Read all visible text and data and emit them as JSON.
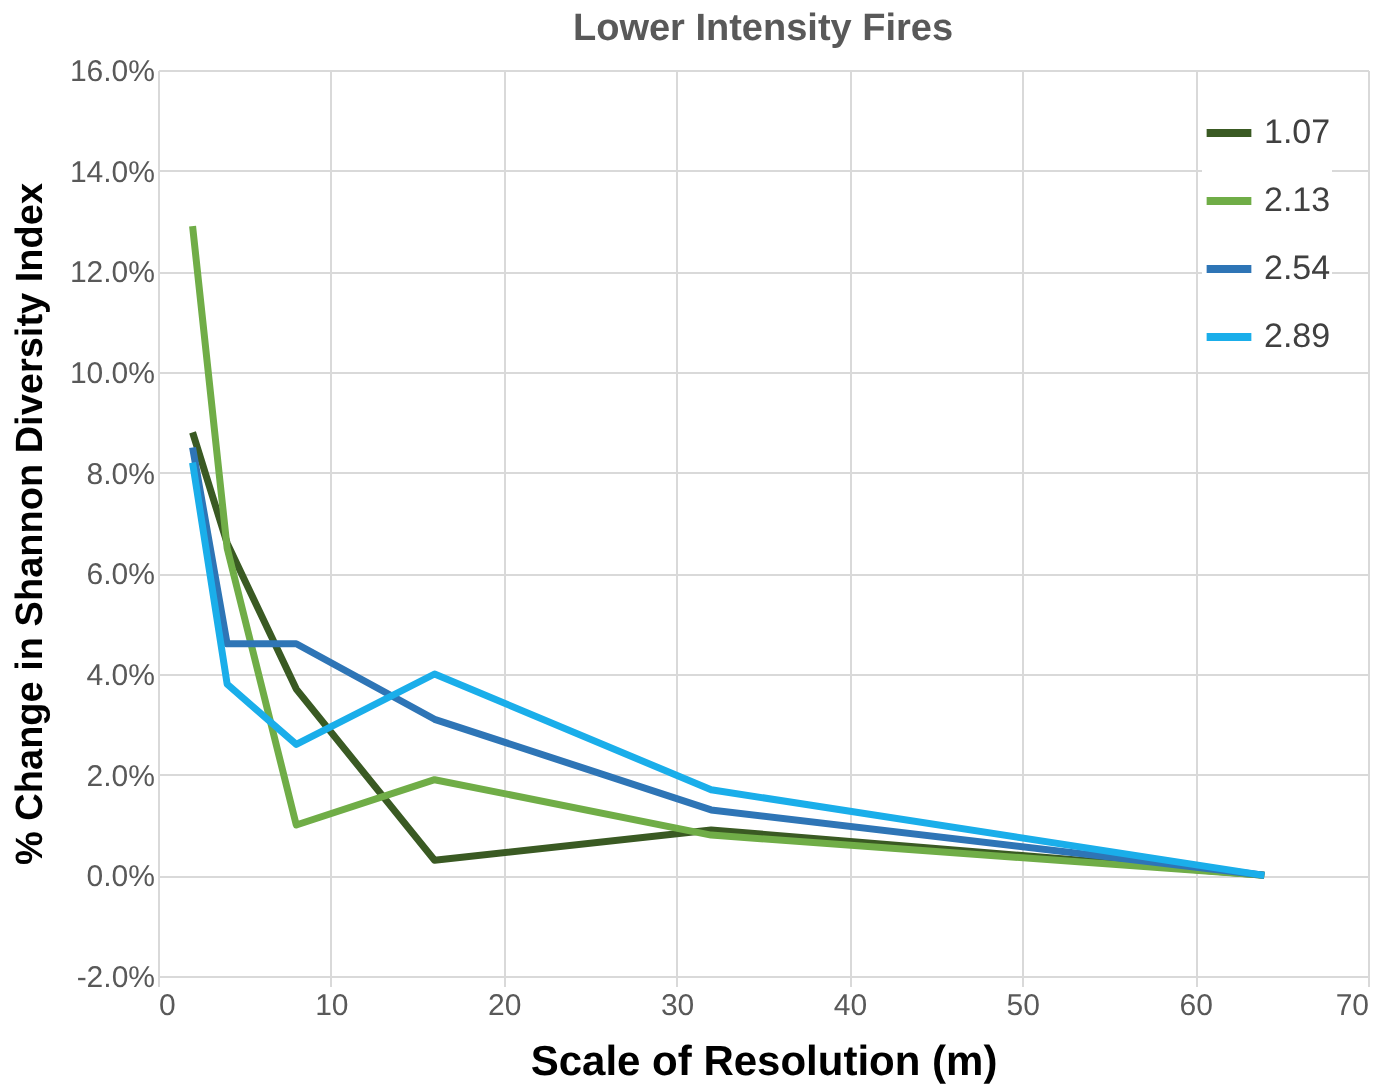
{
  "chart_data": {
    "type": "line",
    "title": "Lower Intensity Fires",
    "xlabel": "Scale of Resolution (m)",
    "ylabel": "% Change in Shannon Diversity Index",
    "x": [
      2,
      4,
      8,
      16,
      32,
      64
    ],
    "series": [
      {
        "name": "1.07",
        "color": "#3a5a23",
        "values": [
          8.8,
          6.6,
          3.7,
          0.3,
          0.9,
          0.0
        ]
      },
      {
        "name": "2.13",
        "color": "#70ad47",
        "values": [
          12.9,
          6.5,
          1.0,
          1.9,
          0.8,
          0.0
        ]
      },
      {
        "name": "2.54",
        "color": "#2e75b6",
        "values": [
          8.5,
          4.6,
          4.6,
          3.1,
          1.3,
          0.0
        ]
      },
      {
        "name": "2.89",
        "color": "#1aaeea",
        "values": [
          8.2,
          3.8,
          2.6,
          4.0,
          1.7,
          0.0
        ]
      }
    ],
    "xlim": [
      0,
      70
    ],
    "xticks": [
      0,
      10,
      20,
      30,
      40,
      50,
      60,
      70
    ],
    "ylim": [
      -2,
      16
    ],
    "yticks": [
      {
        "value": -2,
        "label": "-2.0%"
      },
      {
        "value": 0,
        "label": "0.0%"
      },
      {
        "value": 2,
        "label": "2.0%"
      },
      {
        "value": 4,
        "label": "4.0%"
      },
      {
        "value": 6,
        "label": "6.0%"
      },
      {
        "value": 8,
        "label": "8.0%"
      },
      {
        "value": 10,
        "label": "10.0%"
      },
      {
        "value": 12,
        "label": "12.0%"
      },
      {
        "value": 14,
        "label": "14.0%"
      },
      {
        "value": 16,
        "label": "16.0%"
      }
    ],
    "grid": true,
    "legend": "top right",
    "marker": "none",
    "line_style": "solid"
  }
}
